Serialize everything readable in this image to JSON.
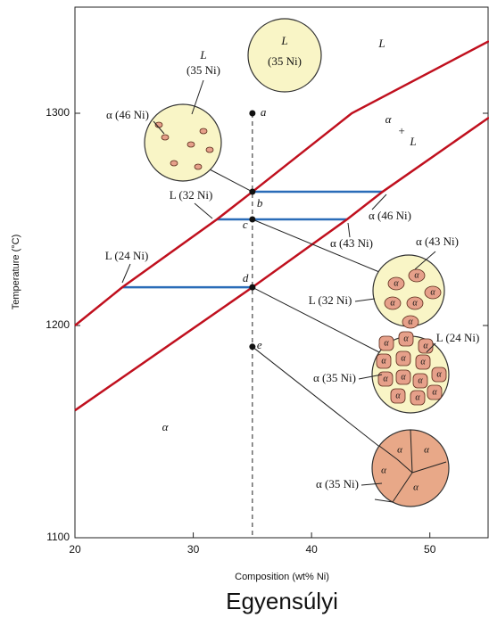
{
  "chart_data": {
    "type": "line",
    "x_label": "Composition (wt% Ni)",
    "y_label": "Temperature (°C)",
    "caption": "Egyensúlyi",
    "xlim": [
      20,
      55
    ],
    "ylim": [
      1100,
      1350
    ],
    "xticks": [
      20,
      30,
      40,
      50
    ],
    "yticks": [
      1100,
      1200,
      1300
    ],
    "series": [
      {
        "color": "#c0101e",
        "x": [
          20,
          24,
          32,
          35,
          43.4,
          55
        ],
        "values": [
          1200,
          1218,
          1250,
          1263,
          1300,
          1334
        ]
      },
      {
        "color": "#c0101e",
        "x": [
          20,
          35,
          43,
          46,
          55
        ],
        "values": [
          1160,
          1218,
          1250,
          1263,
          1298
        ]
      }
    ],
    "tie_lines": {
      "color": "#2a6cb8",
      "values": [
        1263,
        1250,
        1218
      ],
      "x": [
        [
          35,
          46
        ],
        [
          32,
          43
        ],
        [
          24,
          35
        ]
      ]
    },
    "composition": 35,
    "points": {
      "labels": [
        "a",
        "b",
        "c",
        "d",
        "e"
      ],
      "values": [
        1300,
        1263,
        1250,
        1218,
        1190
      ]
    },
    "region_labels": [
      "L",
      "α",
      "+",
      "L",
      "α"
    ],
    "callouts": [
      "L (24 Ni)",
      "L (32 Ni)",
      "α (46 Ni)",
      "α (43 Ni)"
    ],
    "micro_labels": [
      "L",
      "(35 Ni)",
      "L",
      "(35 Ni)",
      "α (46 Ni)",
      "α (43 Ni)",
      "L (32 Ni)",
      "L (24 Ni)",
      "α (35 Ni)",
      "α (35 Ni)"
    ],
    "grain_label": "α"
  }
}
